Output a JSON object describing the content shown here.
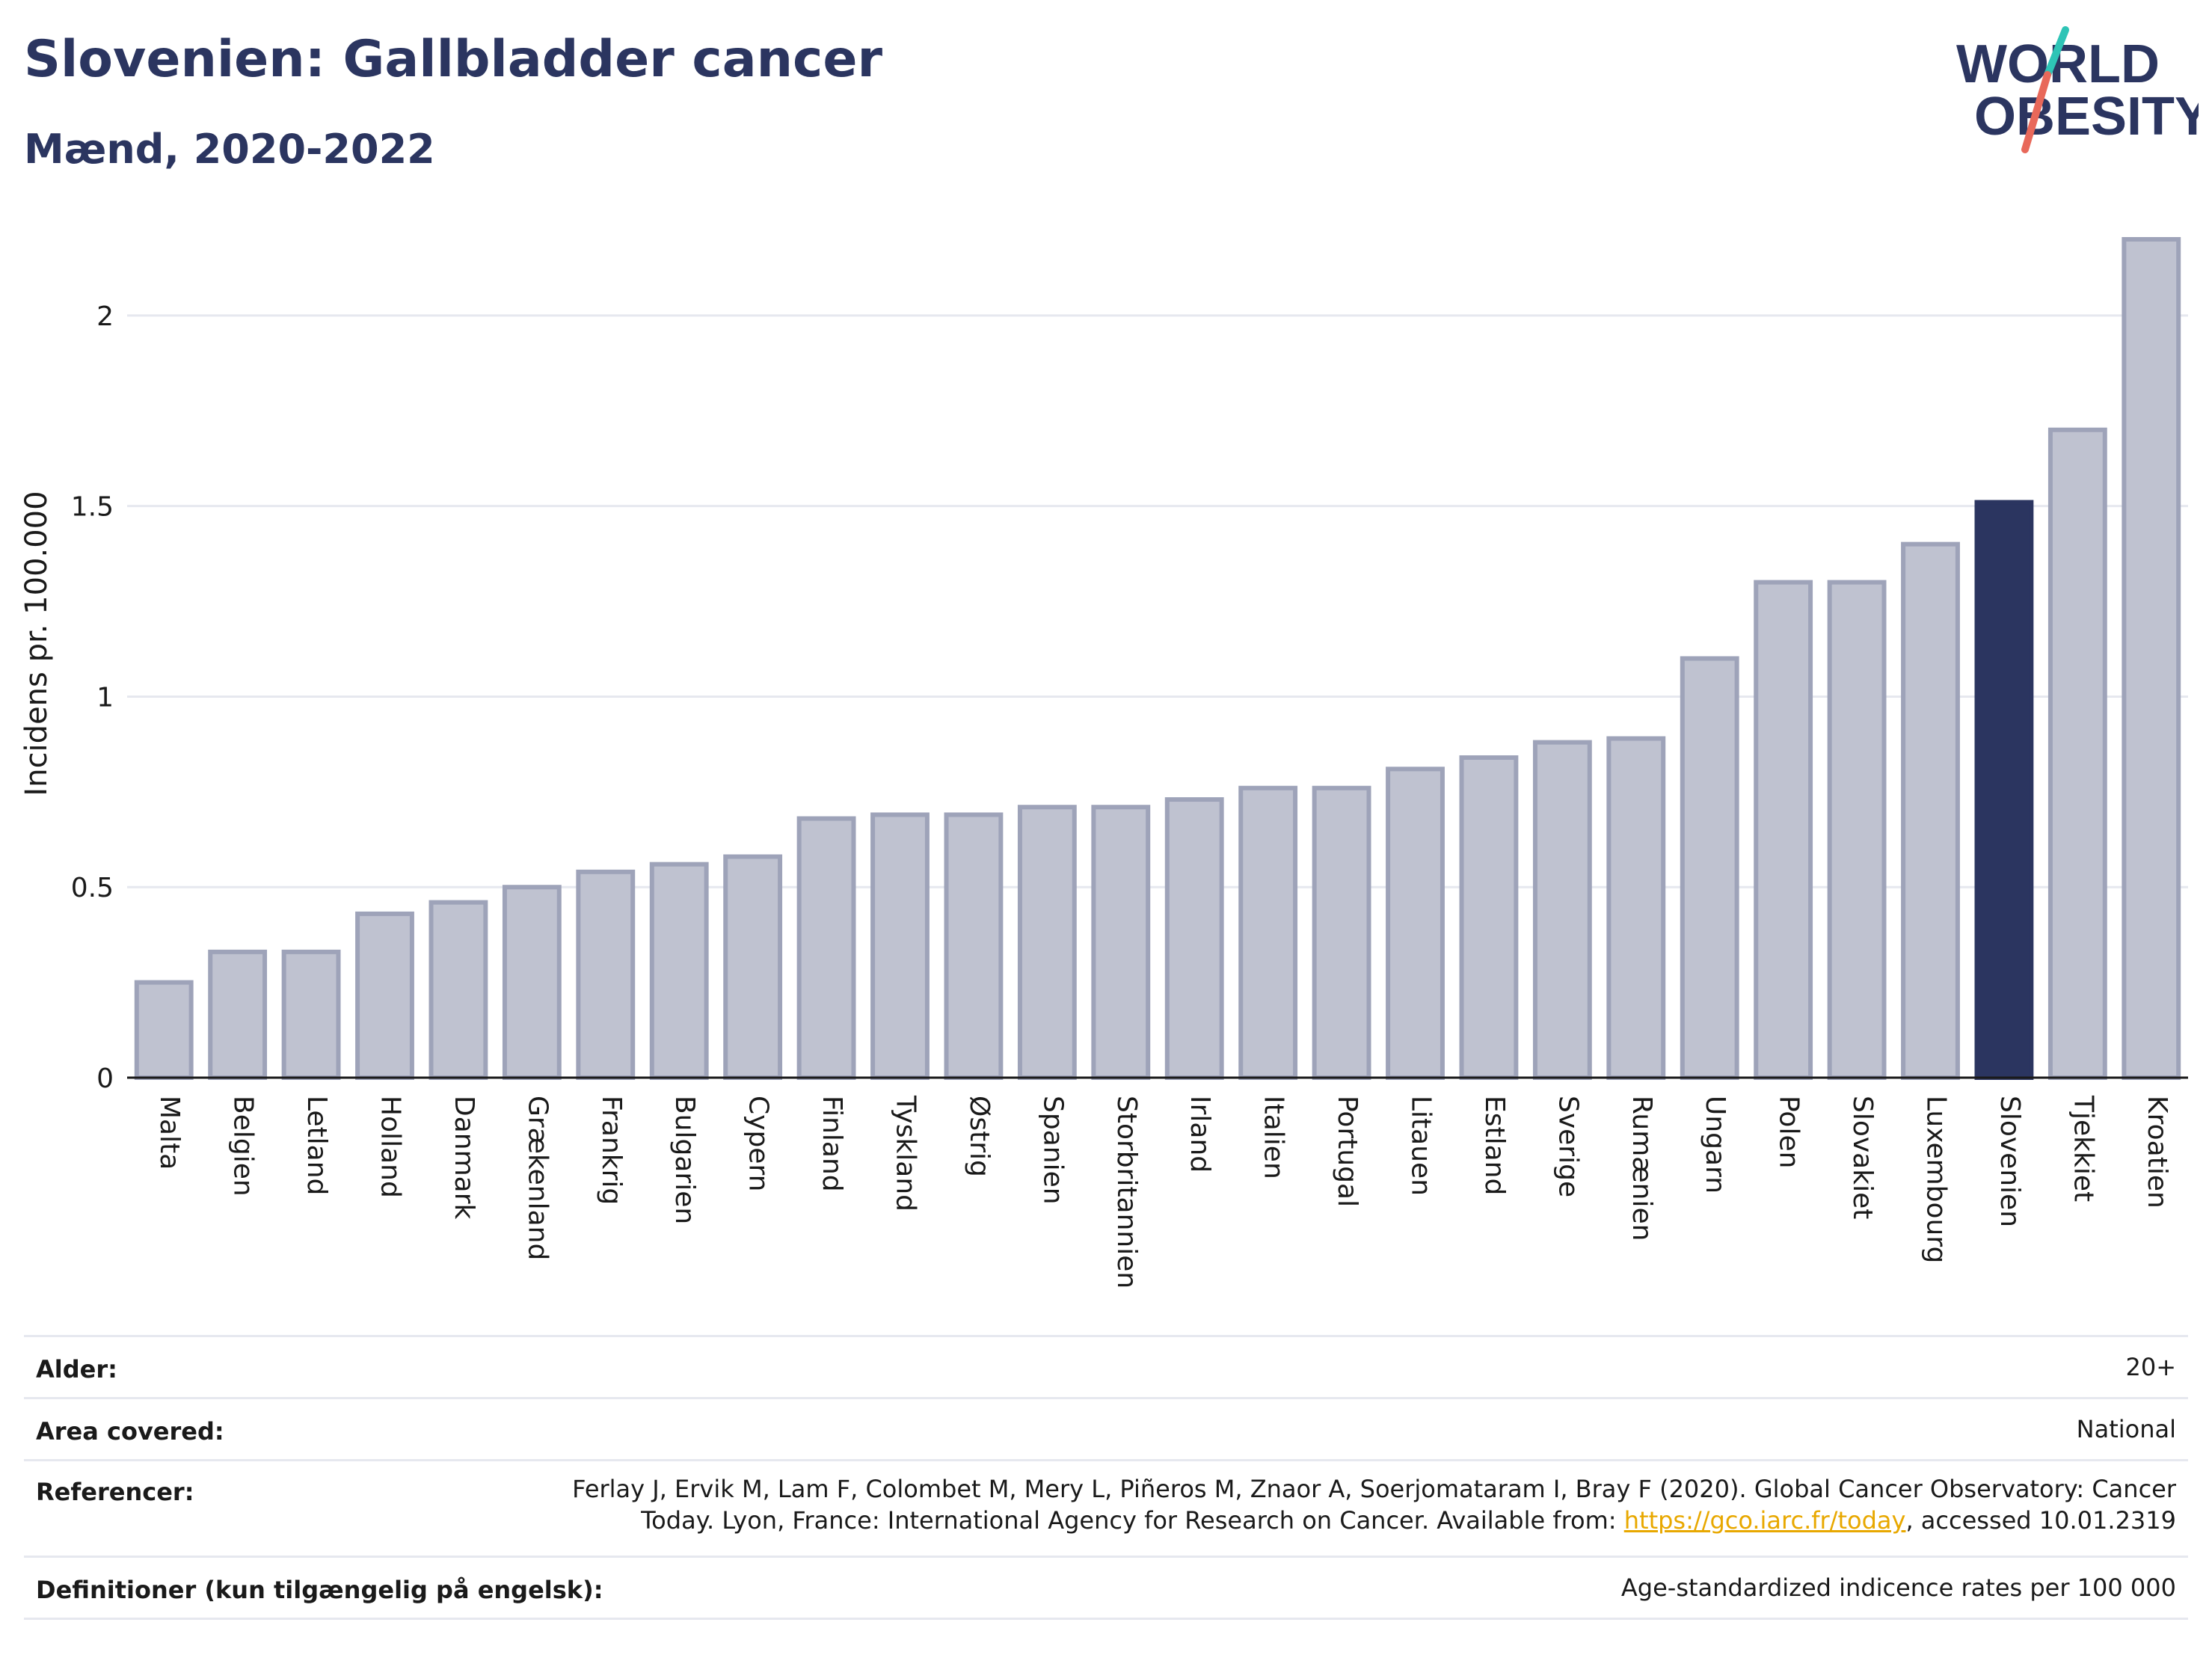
{
  "header": {
    "title": "Slovenien: Gallbladder cancer",
    "subtitle": "Mænd, 2020-2022"
  },
  "logo": {
    "line1": "WORLD",
    "line2": "OBESITY",
    "text_color": "#2b3560",
    "slash_color_top": "#2ec4b6",
    "slash_color_bottom": "#e8685a"
  },
  "chart_data": {
    "type": "bar",
    "ylabel": "Incidens pr. 100.000",
    "ylim": [
      0,
      2.2
    ],
    "yticks": [
      "0",
      "0.5",
      "1",
      "1.5",
      "2"
    ],
    "categories": [
      "Malta",
      "Belgien",
      "Letland",
      "Holland",
      "Danmark",
      "Grækenland",
      "Frankrig",
      "Bulgarien",
      "Cypern",
      "Finland",
      "Tyskland",
      "Østrig",
      "Spanien",
      "Storbritannien",
      "Irland",
      "Italien",
      "Portugal",
      "Litauen",
      "Estland",
      "Sverige",
      "Rumænien",
      "Ungarn",
      "Polen",
      "Slovakiet",
      "Luxembourg",
      "Slovenien",
      "Tjekkiet",
      "Kroatien"
    ],
    "values": [
      0.25,
      0.33,
      0.33,
      0.43,
      0.46,
      0.5,
      0.54,
      0.56,
      0.58,
      0.68,
      0.69,
      0.69,
      0.71,
      0.71,
      0.73,
      0.76,
      0.76,
      0.81,
      0.84,
      0.88,
      0.89,
      1.1,
      1.3,
      1.3,
      1.4,
      1.51,
      1.7,
      2.2
    ],
    "highlight": "Slovenien",
    "colors": {
      "bar": "#bfc2d0",
      "bar_border": "#9ea3b9",
      "highlight": "#2b3560",
      "grid": "#e6e8ef",
      "axis": "#1a1a1a"
    },
    "grid": true
  },
  "info": {
    "rows": [
      {
        "label": "Alder:",
        "value": "20+"
      },
      {
        "label": "Area covered:",
        "value": "National"
      },
      {
        "label": "Referencer:",
        "value_line1": "Ferlay J, Ervik M, Lam F, Colombet M, Mery L, Piñeros M, Znaor A, Soerjomataram I, Bray F (2020). Global Cancer Observatory: Cancer",
        "value_line2_pre": "Today. Lyon, France: International Agency for Research on Cancer. Available from: ",
        "value_link": "https://gco.iarc.fr/today",
        "value_line2_post": ", accessed 10.01.2319"
      },
      {
        "label": "Definitioner (kun tilgængelig på engelsk):",
        "value": "Age-standardized indicence rates per 100 000"
      }
    ]
  }
}
